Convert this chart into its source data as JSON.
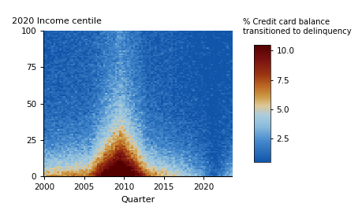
{
  "title": "2020 Income centile",
  "xlabel": "Quarter",
  "colorbar_label": "% Credit card balance\ntransitioned to delinquency",
  "colorbar_ticks": [
    2.5,
    5.0,
    7.5,
    10.0
  ],
  "vmin": 0.5,
  "vmax": 10.5,
  "year_start": 1999.875,
  "year_end": 2023.625,
  "n_quarters": 95,
  "n_centiles": 100,
  "xtick_years": [
    2000,
    2005,
    2010,
    2015,
    2020
  ],
  "cmap_colors": [
    [
      0.0,
      "#1155aa"
    ],
    [
      0.18,
      "#4488cc"
    ],
    [
      0.3,
      "#88bbdd"
    ],
    [
      0.4,
      "#aaccdd"
    ],
    [
      0.48,
      "#ddc899"
    ],
    [
      0.56,
      "#cc9944"
    ],
    [
      0.65,
      "#bb6622"
    ],
    [
      0.75,
      "#993311"
    ],
    [
      0.88,
      "#771111"
    ],
    [
      1.0,
      "#550000"
    ]
  ]
}
